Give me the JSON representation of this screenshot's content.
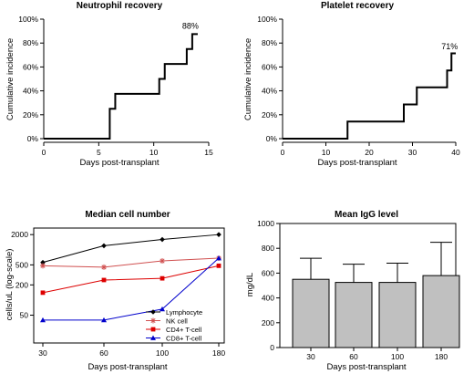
{
  "chart_data": [
    {
      "type": "line",
      "style": "step",
      "title": "Neutrophil recovery",
      "xlabel": "Days post-transplant",
      "ylabel": "Cumulative incidence",
      "xlim": [
        0,
        15
      ],
      "ylim": [
        0,
        100
      ],
      "xticks": [
        0,
        5,
        10,
        15
      ],
      "yticks": [
        0,
        20,
        40,
        60,
        80,
        100
      ],
      "ytick_labels": [
        "0%",
        "20%",
        "40%",
        "60%",
        "80%",
        "100%"
      ],
      "x": [
        0,
        6,
        6.5,
        10,
        10.5,
        11,
        13,
        13.5,
        14
      ],
      "y": [
        0,
        25,
        37.5,
        37.5,
        50,
        62.5,
        75,
        87.5,
        87.5
      ],
      "annotation": {
        "text": "88%",
        "x": 13.5,
        "y": 88
      },
      "color": "#000000"
    },
    {
      "type": "line",
      "style": "step",
      "title": "Platelet recovery",
      "xlabel": "Days post-transplant",
      "ylabel": "Cumulative incidence",
      "xlim": [
        0,
        40
      ],
      "ylim": [
        0,
        100
      ],
      "xticks": [
        0,
        10,
        20,
        30,
        40
      ],
      "yticks": [
        0,
        20,
        40,
        60,
        80,
        100
      ],
      "ytick_labels": [
        "0%",
        "20%",
        "40%",
        "60%",
        "80%",
        "100%"
      ],
      "x": [
        0,
        15,
        28,
        31,
        38,
        39,
        40
      ],
      "y": [
        0,
        14.3,
        28.6,
        42.9,
        57.1,
        71.4,
        71.4
      ],
      "annotation": {
        "text": "71%",
        "x": 39,
        "y": 71
      },
      "color": "#000000"
    },
    {
      "type": "line",
      "title": "Median cell number",
      "xlabel": "Days post-transplant",
      "ylabel": "cells/uL (log-scale)",
      "yscale": "log",
      "categories": [
        "30",
        "60",
        "100",
        "180"
      ],
      "ylim": [
        14,
        2700
      ],
      "yticks": [
        50,
        200,
        500,
        2000
      ],
      "legend": "bottom-right",
      "series": [
        {
          "name": "Lymphocyte",
          "marker": "diamond",
          "color": "#000000",
          "values": [
            560,
            1200,
            1600,
            2000
          ]
        },
        {
          "name": "NK cell",
          "marker": "asterisk",
          "color": "#d05050",
          "values": [
            480,
            450,
            600,
            680
          ]
        },
        {
          "name": "CD4+ T-cell",
          "marker": "square",
          "color": "#dd0000",
          "values": [
            140,
            250,
            270,
            480
          ]
        },
        {
          "name": "CD8+ T-cell",
          "marker": "triangle",
          "color": "#0000cc",
          "values": [
            40,
            40,
            66,
            680
          ]
        }
      ]
    },
    {
      "type": "bar",
      "title": "Mean IgG level",
      "xlabel": "Days post-transplant",
      "ylabel": "mg/dL",
      "categories": [
        "30",
        "60",
        "100",
        "180"
      ],
      "values": [
        550,
        525,
        525,
        580
      ],
      "error_upper": [
        720,
        672,
        680,
        848
      ],
      "ylim": [
        0,
        1000
      ],
      "yticks": [
        0,
        200,
        400,
        600,
        800,
        1000
      ],
      "bar_color": "#c0c0c0"
    }
  ]
}
